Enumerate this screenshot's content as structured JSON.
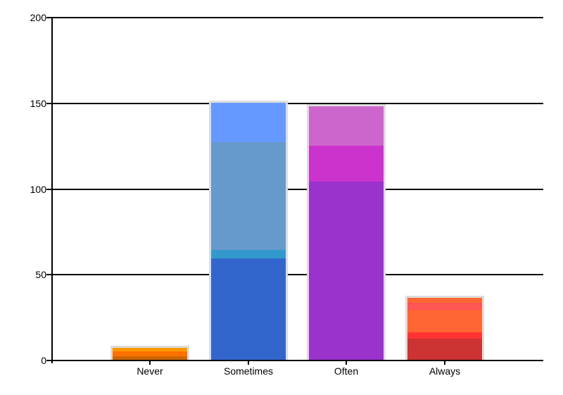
{
  "chart_data": {
    "type": "bar",
    "stacked": true,
    "title": "",
    "xlabel": "",
    "ylabel": "",
    "categories": [
      "Never",
      "Sometimes",
      "Often",
      "Always"
    ],
    "yticks": [
      0,
      50,
      100,
      150,
      200
    ],
    "ylim": [
      0,
      200
    ],
    "grid": true,
    "legend_position": "none",
    "segment_order": "bottom-up",
    "bars": [
      {
        "category": "Never",
        "total": 7,
        "segments": [
          {
            "value": 2,
            "color": "#CC6600"
          },
          {
            "value": 3,
            "color": "#FF7100"
          },
          {
            "value": 2,
            "color": "#FF9900"
          }
        ]
      },
      {
        "category": "Sometimes",
        "total": 150,
        "segments": [
          {
            "value": 59,
            "color": "#3366CC"
          },
          {
            "value": 5,
            "color": "#3399CC"
          },
          {
            "value": 63,
            "color": "#6699CC"
          },
          {
            "value": 23,
            "color": "#6699FF"
          }
        ]
      },
      {
        "category": "Often",
        "total": 148,
        "segments": [
          {
            "value": 104,
            "color": "#9933CC"
          },
          {
            "value": 21,
            "color": "#CC33CC"
          },
          {
            "value": 23,
            "color": "#CC66CC"
          }
        ]
      },
      {
        "category": "Always",
        "total": 36,
        "segments": [
          {
            "value": 12,
            "color": "#CC3333"
          },
          {
            "value": 4,
            "color": "#FF3333"
          },
          {
            "value": 13,
            "color": "#FF6633"
          },
          {
            "value": 4,
            "color": "#FF5555"
          },
          {
            "value": 3,
            "color": "#FF6633"
          }
        ]
      }
    ],
    "colors": {
      "axis": "#000000",
      "grid": "#000000",
      "bar_border": "#DDDDDD",
      "label": "#000000",
      "background": "#FFFFFF"
    }
  }
}
